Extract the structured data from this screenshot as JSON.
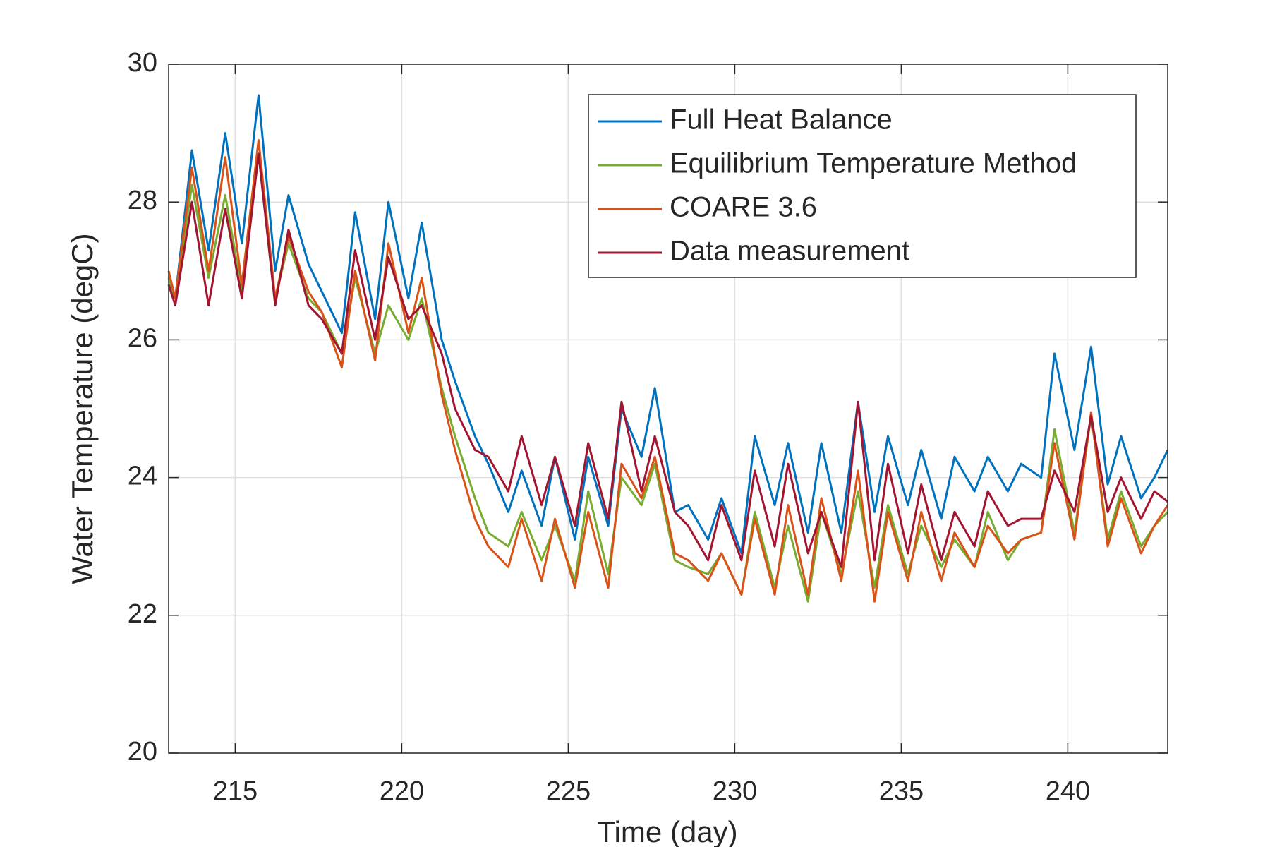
{
  "chart_data": {
    "type": "line",
    "xlabel": "Time (day)",
    "ylabel": "Water Temperature (degC)",
    "x": [
      213.0,
      213.2,
      213.7,
      214.2,
      214.7,
      215.2,
      215.7,
      216.2,
      216.6,
      217.2,
      217.6,
      218.2,
      218.6,
      219.2,
      219.6,
      220.2,
      220.6,
      221.2,
      221.6,
      222.2,
      222.6,
      223.2,
      223.6,
      224.2,
      224.6,
      225.2,
      225.6,
      226.2,
      226.6,
      227.2,
      227.6,
      228.2,
      228.6,
      229.2,
      229.6,
      230.2,
      230.6,
      231.2,
      231.6,
      232.2,
      232.6,
      233.2,
      233.7,
      234.2,
      234.6,
      235.2,
      235.6,
      236.2,
      236.6,
      237.2,
      237.6,
      238.2,
      238.6,
      239.2,
      239.6,
      240.2,
      240.7,
      241.2,
      241.6,
      242.2,
      242.6,
      243.0
    ],
    "series": [
      {
        "name": "Full Heat Balance",
        "color": "#0072BD",
        "values": [
          26.8,
          26.6,
          28.75,
          27.3,
          29.0,
          27.4,
          29.55,
          27.0,
          28.1,
          27.1,
          26.7,
          26.1,
          27.85,
          26.3,
          28.0,
          26.6,
          27.7,
          26.0,
          25.4,
          24.6,
          24.2,
          23.5,
          24.1,
          23.3,
          24.3,
          23.1,
          24.3,
          23.3,
          25.0,
          24.3,
          25.3,
          23.5,
          23.6,
          23.1,
          23.7,
          22.9,
          24.6,
          23.6,
          24.5,
          23.2,
          24.5,
          23.2,
          25.1,
          23.5,
          24.6,
          23.6,
          24.4,
          23.4,
          24.3,
          23.8,
          24.3,
          23.8,
          24.2,
          24.0,
          25.8,
          24.4,
          25.9,
          23.9,
          24.6,
          23.7,
          24.0,
          24.4
        ]
      },
      {
        "name": "Equilibrium Temperature Method",
        "color": "#77AC30",
        "values": [
          26.9,
          26.6,
          28.25,
          26.9,
          28.1,
          26.7,
          28.7,
          26.6,
          27.4,
          26.6,
          26.4,
          25.8,
          26.9,
          25.8,
          26.5,
          26.0,
          26.6,
          25.3,
          24.6,
          23.7,
          23.2,
          23.0,
          23.5,
          22.8,
          23.3,
          22.5,
          23.8,
          22.6,
          24.0,
          23.6,
          24.2,
          22.8,
          22.7,
          22.6,
          22.9,
          22.3,
          23.5,
          22.4,
          23.3,
          22.2,
          23.5,
          22.6,
          23.8,
          22.4,
          23.6,
          22.6,
          23.3,
          22.7,
          23.1,
          22.7,
          23.5,
          22.8,
          23.1,
          23.2,
          24.7,
          23.2,
          24.9,
          23.1,
          23.8,
          23.0,
          23.3,
          23.5
        ]
      },
      {
        "name": "COARE 3.6",
        "color": "#D95319",
        "values": [
          27.0,
          26.6,
          28.5,
          27.0,
          28.65,
          26.8,
          28.9,
          26.6,
          27.5,
          26.7,
          26.4,
          25.6,
          27.0,
          25.7,
          27.4,
          26.1,
          26.9,
          25.2,
          24.4,
          23.4,
          23.0,
          22.7,
          23.4,
          22.5,
          23.4,
          22.4,
          23.5,
          22.4,
          24.2,
          23.7,
          24.3,
          22.9,
          22.8,
          22.5,
          22.9,
          22.3,
          23.4,
          22.3,
          23.6,
          22.3,
          23.7,
          22.5,
          24.1,
          22.2,
          23.5,
          22.5,
          23.5,
          22.5,
          23.2,
          22.7,
          23.3,
          22.9,
          23.1,
          23.2,
          24.5,
          23.1,
          24.95,
          23.0,
          23.7,
          22.9,
          23.3,
          23.6
        ]
      },
      {
        "name": "Data measurement",
        "color": "#A2142F",
        "values": [
          26.8,
          26.5,
          28.0,
          26.5,
          27.9,
          26.6,
          28.7,
          26.5,
          27.6,
          26.5,
          26.3,
          25.8,
          27.3,
          26.0,
          27.2,
          26.3,
          26.5,
          25.8,
          25.0,
          24.4,
          24.3,
          23.8,
          24.6,
          23.6,
          24.3,
          23.3,
          24.5,
          23.4,
          25.1,
          23.8,
          24.6,
          23.5,
          23.3,
          22.8,
          23.6,
          22.8,
          24.1,
          23.0,
          24.2,
          22.9,
          23.5,
          22.7,
          25.1,
          22.8,
          24.2,
          22.9,
          23.9,
          22.8,
          23.5,
          23.0,
          23.8,
          23.3,
          23.4,
          23.4,
          24.1,
          23.5,
          24.9,
          23.5,
          24.0,
          23.4,
          23.8,
          23.65
        ]
      }
    ],
    "xlim": [
      213,
      243
    ],
    "xticks": [
      215,
      220,
      225,
      230,
      235,
      240
    ],
    "ylim": [
      20,
      30
    ],
    "yticks": [
      20,
      22,
      24,
      26,
      28,
      30
    ],
    "grid": true,
    "legend_loc": "upper right"
  }
}
